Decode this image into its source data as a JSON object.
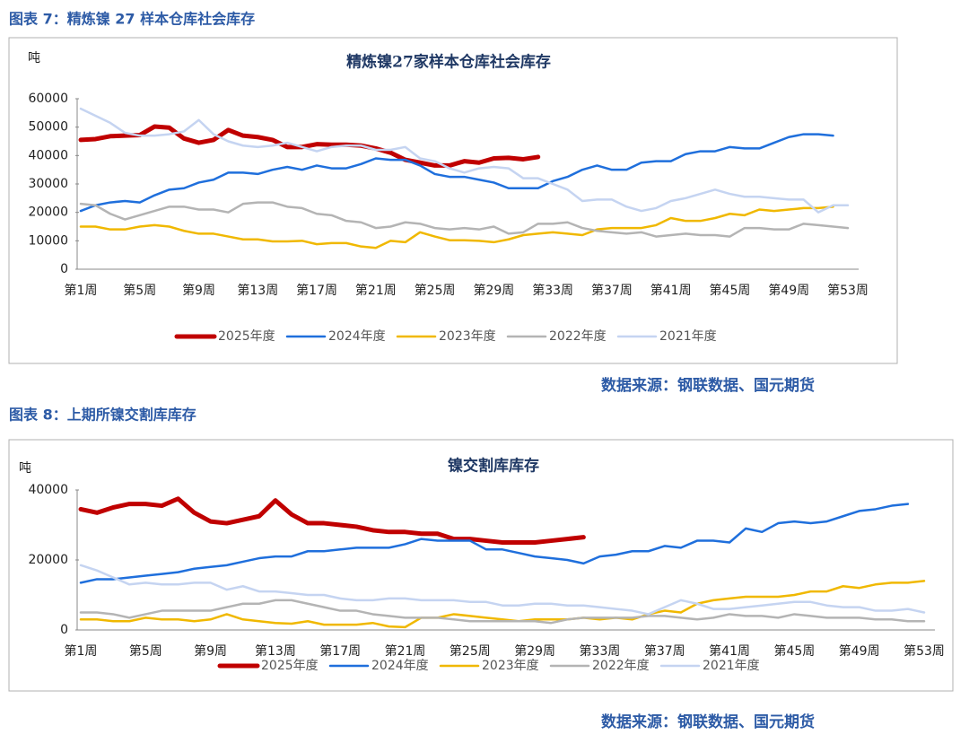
{
  "captions": [
    "图表 7：精炼镍 27 样本仓库社会库存",
    "图表 8：上期所镍交割库库存"
  ],
  "sources": [
    "数据来源：钢联数据、国元期货",
    "数据来源：钢联数据、国元期货"
  ],
  "chart_data": [
    {
      "type": "line",
      "title": "精炼镍27家样本仓库社会库存",
      "y_label": "吨",
      "categories": [
        "第1周",
        null,
        null,
        null,
        "第5周",
        null,
        null,
        null,
        "第9周",
        null,
        null,
        null,
        "第13周",
        null,
        null,
        null,
        "第17周",
        null,
        null,
        null,
        "第21周",
        null,
        null,
        null,
        "第25周",
        null,
        null,
        null,
        "第29周",
        null,
        null,
        null,
        "第33周",
        null,
        null,
        null,
        "第37周",
        null,
        null,
        null,
        "第41周",
        null,
        null,
        null,
        "第45周",
        null,
        null,
        null,
        "第49周",
        null,
        null,
        null,
        "第53周"
      ],
      "ylim": [
        0,
        60000
      ],
      "yticks": [
        0,
        10000,
        20000,
        30000,
        40000,
        50000,
        60000
      ],
      "legend": "bottom",
      "series": [
        {
          "name": "2025年度",
          "color": "#c00000",
          "values": [
            45500,
            45800,
            46800,
            47000,
            47200,
            50200,
            49800,
            46000,
            44500,
            45500,
            49000,
            47000,
            46500,
            45500,
            43000,
            43000,
            44000,
            43800,
            43800,
            43500,
            42500,
            41000,
            38500,
            37500,
            36500,
            36500,
            38000,
            37500,
            39000,
            39200,
            38700,
            39500,
            null,
            null,
            null,
            null,
            null,
            null,
            null,
            null,
            null,
            null,
            null,
            null,
            null,
            null,
            null,
            null,
            null,
            null,
            null,
            null,
            null
          ]
        },
        {
          "name": "2024年度",
          "color": "#1f6fdc",
          "values": [
            20500,
            22500,
            23500,
            24000,
            23500,
            26000,
            28000,
            28500,
            30500,
            31500,
            34000,
            34000,
            33500,
            35000,
            36000,
            35000,
            36500,
            35500,
            35500,
            37000,
            39000,
            38500,
            38500,
            36500,
            33500,
            32500,
            32500,
            31500,
            30500,
            28500,
            28500,
            28500,
            31000,
            32500,
            35000,
            36500,
            35000,
            35000,
            37500,
            38000,
            38000,
            40500,
            41500,
            41500,
            43000,
            42500,
            42500,
            44500,
            46500,
            47500,
            47500,
            47000,
            null
          ]
        },
        {
          "name": "2023年度",
          "color": "#f0b800",
          "values": [
            15000,
            15000,
            14000,
            14000,
            15000,
            15500,
            15000,
            13500,
            12500,
            12500,
            11500,
            10500,
            10500,
            9800,
            9800,
            10000,
            8800,
            9200,
            9200,
            8000,
            7500,
            10000,
            9500,
            13000,
            11500,
            10200,
            10200,
            10000,
            9500,
            10500,
            12000,
            12500,
            13000,
            12500,
            12000,
            14000,
            14500,
            14500,
            14500,
            15500,
            18000,
            17000,
            17000,
            18000,
            19500,
            19000,
            21000,
            20500,
            21000,
            21500,
            21500,
            22000,
            null
          ]
        },
        {
          "name": "2022年度",
          "color": "#b4b4b4",
          "values": [
            23000,
            22500,
            19500,
            17500,
            19000,
            20500,
            22000,
            22000,
            21000,
            21000,
            20000,
            23000,
            23500,
            23500,
            22000,
            21500,
            19500,
            19000,
            17000,
            16500,
            14500,
            15000,
            16500,
            16000,
            14500,
            14000,
            14500,
            14000,
            15000,
            12500,
            13000,
            16000,
            16000,
            16500,
            14500,
            13500,
            13000,
            12500,
            13000,
            11500,
            12000,
            12500,
            12000,
            12000,
            11500,
            14500,
            14500,
            14000,
            14000,
            16000,
            15500,
            15000,
            14500
          ]
        },
        {
          "name": "2021年度",
          "color": "#c5d4f1",
          "values": [
            56500,
            54000,
            51500,
            48000,
            47000,
            47000,
            47500,
            48500,
            52500,
            47500,
            45000,
            43500,
            43000,
            43500,
            44500,
            43000,
            41500,
            43000,
            43500,
            43500,
            42000,
            42000,
            43000,
            39000,
            38000,
            35500,
            34000,
            35500,
            36000,
            35500,
            32000,
            32000,
            30000,
            28000,
            24000,
            24500,
            24500,
            22000,
            20500,
            21500,
            24000,
            25000,
            26500,
            28000,
            26500,
            25500,
            25500,
            25000,
            24500,
            24500,
            20000,
            22500,
            22500
          ]
        }
      ]
    },
    {
      "type": "line",
      "title": "镍交割库库存",
      "y_label": "吨",
      "categories": [
        "第1周",
        null,
        null,
        null,
        "第5周",
        null,
        null,
        null,
        "第9周",
        null,
        null,
        null,
        "第13周",
        null,
        null,
        null,
        "第17周",
        null,
        null,
        null,
        "第21周",
        null,
        null,
        null,
        "第25周",
        null,
        null,
        null,
        "第29周",
        null,
        null,
        null,
        "第33周",
        null,
        null,
        null,
        "第37周",
        null,
        null,
        null,
        "第41周",
        null,
        null,
        null,
        "第45周",
        null,
        null,
        null,
        "第49周",
        null,
        null,
        null,
        "第53周"
      ],
      "ylim": [
        0,
        40000
      ],
      "yticks": [
        0,
        20000,
        40000
      ],
      "legend": "bottom",
      "series": [
        {
          "name": "2025年度",
          "color": "#c00000",
          "values": [
            34500,
            33500,
            35000,
            36000,
            36000,
            35500,
            37500,
            33500,
            31000,
            30500,
            31500,
            32500,
            37000,
            33000,
            30500,
            30500,
            30000,
            29500,
            28500,
            28000,
            28000,
            27500,
            27500,
            26000,
            26000,
            25500,
            25000,
            25000,
            25000,
            25500,
            26000,
            26500,
            null,
            null,
            null,
            null,
            null,
            null,
            null,
            null,
            null,
            null,
            null,
            null,
            null,
            null,
            null,
            null,
            null,
            null,
            null,
            null,
            null
          ]
        },
        {
          "name": "2024年度",
          "color": "#1f6fdc",
          "values": [
            13500,
            14500,
            14500,
            15000,
            15500,
            16000,
            16500,
            17500,
            18000,
            18500,
            19500,
            20500,
            21000,
            21000,
            22500,
            22500,
            23000,
            23500,
            23500,
            23500,
            24500,
            26000,
            25500,
            25500,
            25500,
            23000,
            23000,
            22000,
            21000,
            20500,
            20000,
            19000,
            21000,
            21500,
            22500,
            22500,
            24000,
            23500,
            25500,
            25500,
            25000,
            29000,
            28000,
            30500,
            31000,
            30500,
            31000,
            32500,
            34000,
            34500,
            35500,
            36000,
            null
          ]
        },
        {
          "name": "2023年度",
          "color": "#f0b800",
          "values": [
            3000,
            3000,
            2500,
            2500,
            3500,
            3000,
            3000,
            2500,
            3000,
            4500,
            3000,
            2500,
            2000,
            1800,
            2500,
            1500,
            1500,
            1500,
            2000,
            1000,
            800,
            3500,
            3500,
            4500,
            4000,
            3500,
            3000,
            2500,
            3000,
            3000,
            3000,
            3500,
            3000,
            3500,
            3000,
            4500,
            5500,
            5000,
            7500,
            8500,
            9000,
            9500,
            9500,
            9500,
            10000,
            11000,
            11000,
            12500,
            12000,
            13000,
            13500,
            13500,
            14000
          ]
        },
        {
          "name": "2022年度",
          "color": "#b4b4b4",
          "values": [
            5000,
            5000,
            4500,
            3500,
            4500,
            5500,
            5500,
            5500,
            5500,
            6500,
            7500,
            7500,
            8500,
            8500,
            7500,
            6500,
            5500,
            5500,
            4500,
            4000,
            3500,
            3500,
            3500,
            3000,
            2500,
            2500,
            2500,
            2500,
            2500,
            2000,
            3000,
            3500,
            3500,
            3500,
            3500,
            4000,
            4000,
            3500,
            3000,
            3500,
            4500,
            4000,
            4000,
            3500,
            4500,
            4000,
            3500,
            3500,
            3500,
            3000,
            3000,
            2500,
            2500
          ]
        },
        {
          "name": "2021年度",
          "color": "#c5d4f1",
          "values": [
            18500,
            17000,
            15000,
            13000,
            13500,
            13000,
            13000,
            13500,
            13500,
            11500,
            12500,
            11000,
            11000,
            10500,
            10000,
            10000,
            9000,
            8500,
            8500,
            9000,
            9000,
            8500,
            8500,
            8500,
            8000,
            8000,
            7000,
            7000,
            7500,
            7500,
            7000,
            7000,
            6500,
            6000,
            5500,
            4500,
            6500,
            8500,
            7500,
            6000,
            6000,
            6500,
            7000,
            7500,
            8000,
            8000,
            7000,
            6500,
            6500,
            5500,
            5500,
            6000,
            5000
          ]
        }
      ]
    }
  ]
}
